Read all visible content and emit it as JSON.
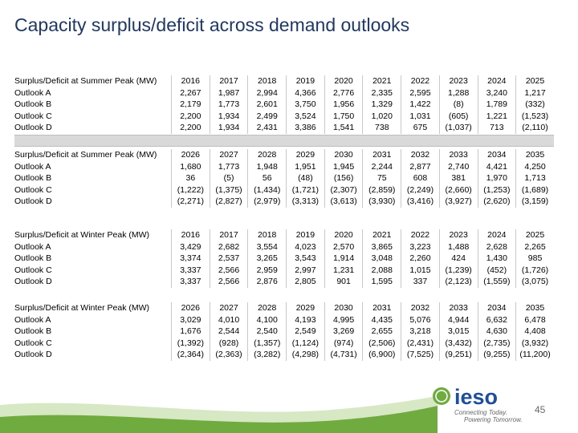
{
  "title": "Capacity surplus/deficit across demand outlooks",
  "tables": [
    {
      "header": [
        "Surplus/Deficit at Summer Peak (MW)",
        "2016",
        "2017",
        "2018",
        "2019",
        "2020",
        "2021",
        "2022",
        "2023",
        "2024",
        "2025"
      ],
      "rows": [
        [
          "Outlook A",
          "2,267",
          "1,987",
          "2,994",
          "4,366",
          "2,776",
          "2,335",
          "2,595",
          "1,288",
          "3,240",
          "1,217"
        ],
        [
          "Outlook B",
          "2,179",
          "1,773",
          "2,601",
          "3,750",
          "1,956",
          "1,329",
          "1,422",
          "(8)",
          "1,789",
          "(332)"
        ],
        [
          "Outlook C",
          "2,200",
          "1,934",
          "2,499",
          "3,524",
          "1,750",
          "1,020",
          "1,031",
          "(605)",
          "1,221",
          "(1,523)"
        ],
        [
          "Outlook D",
          "2,200",
          "1,934",
          "2,431",
          "3,386",
          "1,541",
          "738",
          "675",
          "(1,037)",
          "713",
          "(2,110)"
        ]
      ]
    },
    {
      "header": [
        "Surplus/Deficit at Summer Peak (MW)",
        "2026",
        "2027",
        "2028",
        "2029",
        "2030",
        "2031",
        "2032",
        "2033",
        "2034",
        "2035"
      ],
      "rows": [
        [
          "Outlook A",
          "1,680",
          "1,773",
          "1,948",
          "1,951",
          "1,945",
          "2,244",
          "2,877",
          "2,740",
          "4,421",
          "4,250"
        ],
        [
          "Outlook B",
          "36",
          "(5)",
          "56",
          "(48)",
          "(156)",
          "75",
          "608",
          "381",
          "1,970",
          "1,713"
        ],
        [
          "Outlook C",
          "(1,222)",
          "(1,375)",
          "(1,434)",
          "(1,721)",
          "(2,307)",
          "(2,859)",
          "(2,249)",
          "(2,660)",
          "(1,253)",
          "(1,689)"
        ],
        [
          "Outlook D",
          "(2,271)",
          "(2,827)",
          "(2,979)",
          "(3,313)",
          "(3,613)",
          "(3,930)",
          "(3,416)",
          "(3,927)",
          "(2,620)",
          "(3,159)"
        ]
      ]
    },
    {
      "header": [
        "Surplus/Deficit at Winter Peak (MW)",
        "2016",
        "2017",
        "2018",
        "2019",
        "2020",
        "2021",
        "2022",
        "2023",
        "2024",
        "2025"
      ],
      "rows": [
        [
          "Outlook A",
          "3,429",
          "2,682",
          "3,554",
          "4,023",
          "2,570",
          "3,865",
          "3,223",
          "1,488",
          "2,628",
          "2,265"
        ],
        [
          "Outlook B",
          "3,374",
          "2,537",
          "3,265",
          "3,543",
          "1,914",
          "3,048",
          "2,260",
          "424",
          "1,430",
          "985"
        ],
        [
          "Outlook C",
          "3,337",
          "2,566",
          "2,959",
          "2,997",
          "1,231",
          "2,088",
          "1,015",
          "(1,239)",
          "(452)",
          "(1,726)"
        ],
        [
          "Outlook D",
          "3,337",
          "2,566",
          "2,876",
          "2,805",
          "901",
          "1,595",
          "337",
          "(2,123)",
          "(1,559)",
          "(3,075)"
        ]
      ]
    },
    {
      "header": [
        "Surplus/Deficit at Winter Peak (MW)",
        "2026",
        "2027",
        "2028",
        "2029",
        "2030",
        "2031",
        "2032",
        "2033",
        "2034",
        "2035"
      ],
      "rows": [
        [
          "Outlook A",
          "3,029",
          "4,010",
          "4,100",
          "4,193",
          "4,995",
          "4,435",
          "5,076",
          "4,944",
          "6,632",
          "6,478"
        ],
        [
          "Outlook B",
          "1,676",
          "2,544",
          "2,540",
          "2,549",
          "3,269",
          "2,655",
          "3,218",
          "3,015",
          "4,630",
          "4,408"
        ],
        [
          "Outlook C",
          "(1,392)",
          "(928)",
          "(1,357)",
          "(1,124)",
          "(974)",
          "(2,506)",
          "(2,431)",
          "(3,432)",
          "(2,735)",
          "(3,932)"
        ],
        [
          "Outlook D",
          "(2,364)",
          "(2,363)",
          "(3,282)",
          "(4,298)",
          "(4,731)",
          "(6,900)",
          "(7,525)",
          "(9,251)",
          "(9,255)",
          "(11,200)"
        ]
      ]
    }
  ],
  "footer": {
    "logo": "ieso",
    "tagline_1": "Connecting Today.",
    "tagline_2": "Powering Tomorrow.",
    "page_number": "45"
  }
}
